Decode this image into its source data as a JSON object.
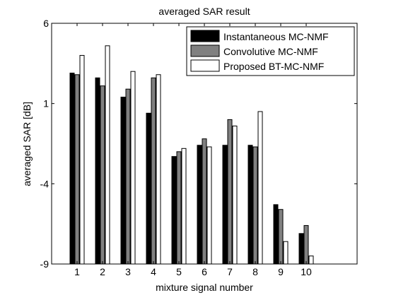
{
  "chart_data": {
    "type": "bar",
    "title": "averaged SAR result",
    "xlabel": "mixture signal number",
    "ylabel": "averaged SAR [dB]",
    "categories": [
      "1",
      "2",
      "3",
      "4",
      "5",
      "6",
      "7",
      "8",
      "9",
      "10"
    ],
    "x_range": [
      0,
      12
    ],
    "ylim": [
      -9,
      6
    ],
    "yticks": [
      "-9",
      "-4",
      "1",
      "6"
    ],
    "yticks_values": [
      -9,
      -4,
      1,
      6
    ],
    "grid": false,
    "legend_position": "top-right",
    "series": [
      {
        "name": "Instantaneous MC-NMF",
        "color": "#000000",
        "values": [
          2.9,
          2.6,
          1.4,
          0.4,
          -2.3,
          -1.6,
          -1.6,
          -1.6,
          -5.3,
          -7.1
        ]
      },
      {
        "name": "Convolutive MC-NMF",
        "color": "#808080",
        "values": [
          2.8,
          2.1,
          1.9,
          2.6,
          -2.0,
          -1.2,
          0.0,
          -1.7,
          -5.6,
          -6.6
        ]
      },
      {
        "name": "Proposed BT-MC-NMF",
        "color": "#ffffff",
        "values": [
          4.0,
          4.6,
          3.0,
          2.8,
          -1.8,
          -1.7,
          -0.4,
          0.5,
          -7.6,
          -8.5
        ]
      }
    ]
  }
}
